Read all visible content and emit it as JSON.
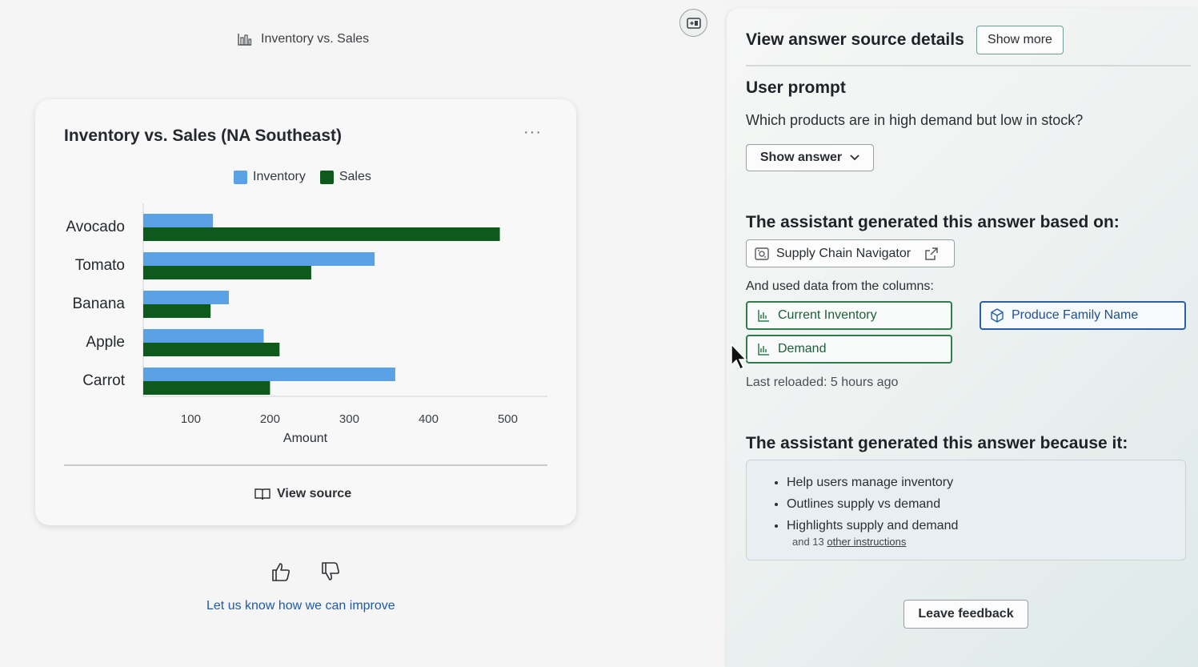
{
  "left": {
    "top_title": "Inventory vs. Sales",
    "card": {
      "title": "Inventory vs. Sales (NA Southeast)",
      "menu": "···",
      "view_source": "View source"
    },
    "feedback_link": "Let us know how we can improve",
    "icons": [
      "chart-icon",
      "collapse-panel-icon",
      "more-icon",
      "book-icon",
      "thumbs-up-icon",
      "thumbs-down-icon"
    ]
  },
  "chart_data": {
    "type": "bar",
    "orientation": "horizontal",
    "categories": [
      "Avocado",
      "Tomato",
      "Banana",
      "Apple",
      "Carrot"
    ],
    "series": [
      {
        "name": "Inventory",
        "values": [
          128,
          332,
          148,
          192,
          358
        ],
        "color": "#5aa1e6"
      },
      {
        "name": "Sales",
        "values": [
          490,
          252,
          125,
          212,
          200
        ],
        "color": "#0d5a1c"
      }
    ],
    "title": "Inventory vs. Sales (NA Southeast)",
    "xlabel": "Amount",
    "ylabel": "",
    "xticks": [
      100,
      200,
      300,
      400,
      500
    ],
    "xlim": [
      40,
      550
    ],
    "legend": "top-center",
    "grid": false
  },
  "right": {
    "header": "View answer source details",
    "show_more": "Show more",
    "user_prompt_heading": "User prompt",
    "prompt": "Which products are in high demand but low in stock?",
    "show_answer": "Show answer",
    "based_on_heading": "The assistant generated this answer based on:",
    "source_name": "Supply Chain Navigator",
    "columns_label": "And used data from the columns:",
    "columns": [
      "Current Inventory",
      "Produce Family Name",
      "Demand"
    ],
    "last_reloaded": "Last reloaded: 5 hours ago",
    "because_heading": "The assistant generated this answer because it:",
    "reasons": [
      "Help users manage inventory",
      "Outlines supply vs demand",
      "Highlights supply and demand"
    ],
    "more_prefix": "and 13",
    "more_link": "other instructions",
    "leave_feedback": "Leave feedback"
  }
}
